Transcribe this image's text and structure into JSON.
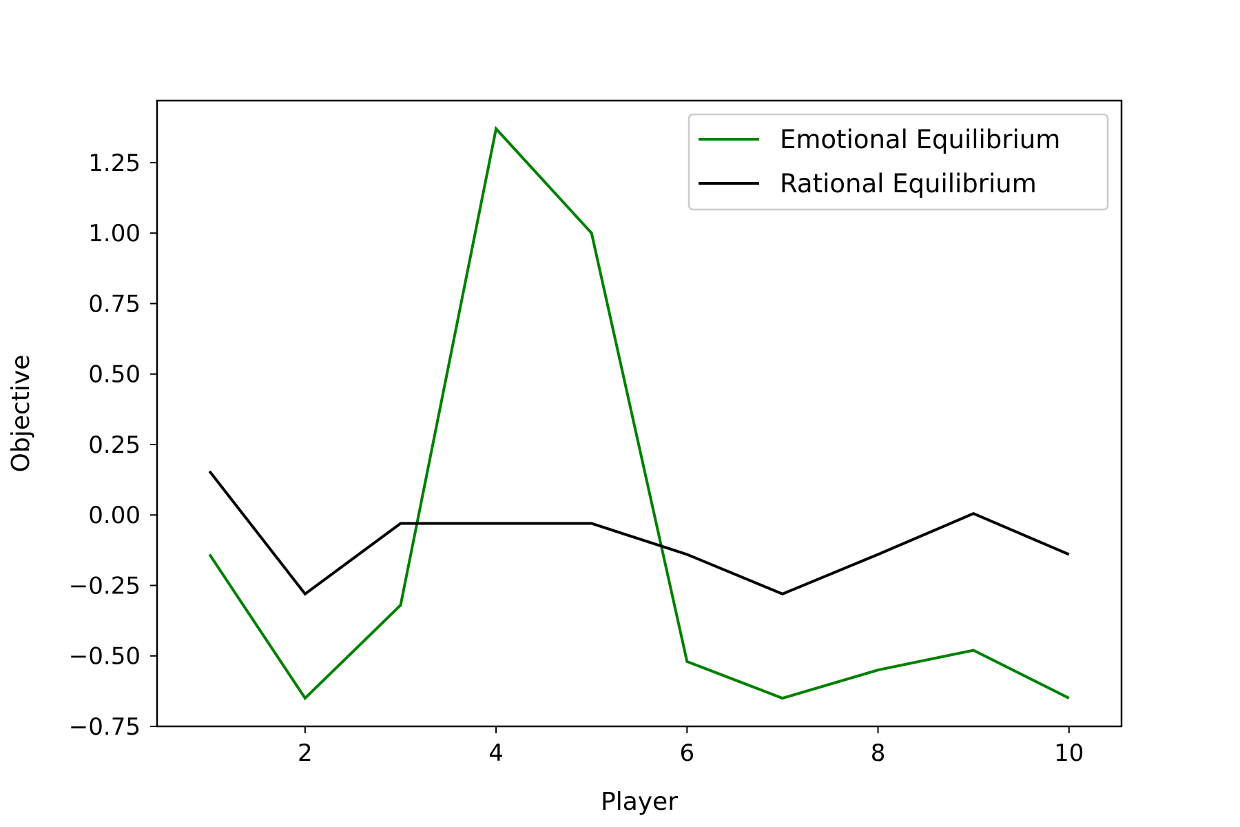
{
  "chart_data": {
    "type": "line",
    "title": "",
    "xlabel": "Player",
    "ylabel": "Objective",
    "xlim": [
      0.45,
      10.55
    ],
    "ylim": [
      -0.75,
      1.47
    ],
    "xticks": [
      2,
      4,
      6,
      8,
      10
    ],
    "xtick_labels": [
      "2",
      "4",
      "6",
      "8",
      "10"
    ],
    "yticks": [
      -0.75,
      -0.5,
      -0.25,
      0.0,
      0.25,
      0.5,
      0.75,
      1.0,
      1.25
    ],
    "ytick_labels": [
      "−0.75",
      "−0.50",
      "−0.25",
      "0.00",
      "0.25",
      "0.50",
      "0.75",
      "1.00",
      "1.25"
    ],
    "grid": false,
    "legend_position": "top-right",
    "x": [
      1,
      2,
      3,
      4,
      5,
      6,
      7,
      8,
      9,
      10
    ],
    "series": [
      {
        "name": "Emotional Equilibrium",
        "color": "#008000",
        "values": [
          -0.14,
          -0.65,
          -0.32,
          1.37,
          1.0,
          -0.52,
          -0.65,
          -0.55,
          -0.48,
          -0.65
        ]
      },
      {
        "name": "Rational Equilibrium",
        "color": "#000000",
        "values": [
          0.155,
          -0.28,
          -0.03,
          -0.03,
          -0.03,
          -0.14,
          -0.28,
          -0.14,
          0.005,
          -0.14
        ]
      }
    ]
  }
}
